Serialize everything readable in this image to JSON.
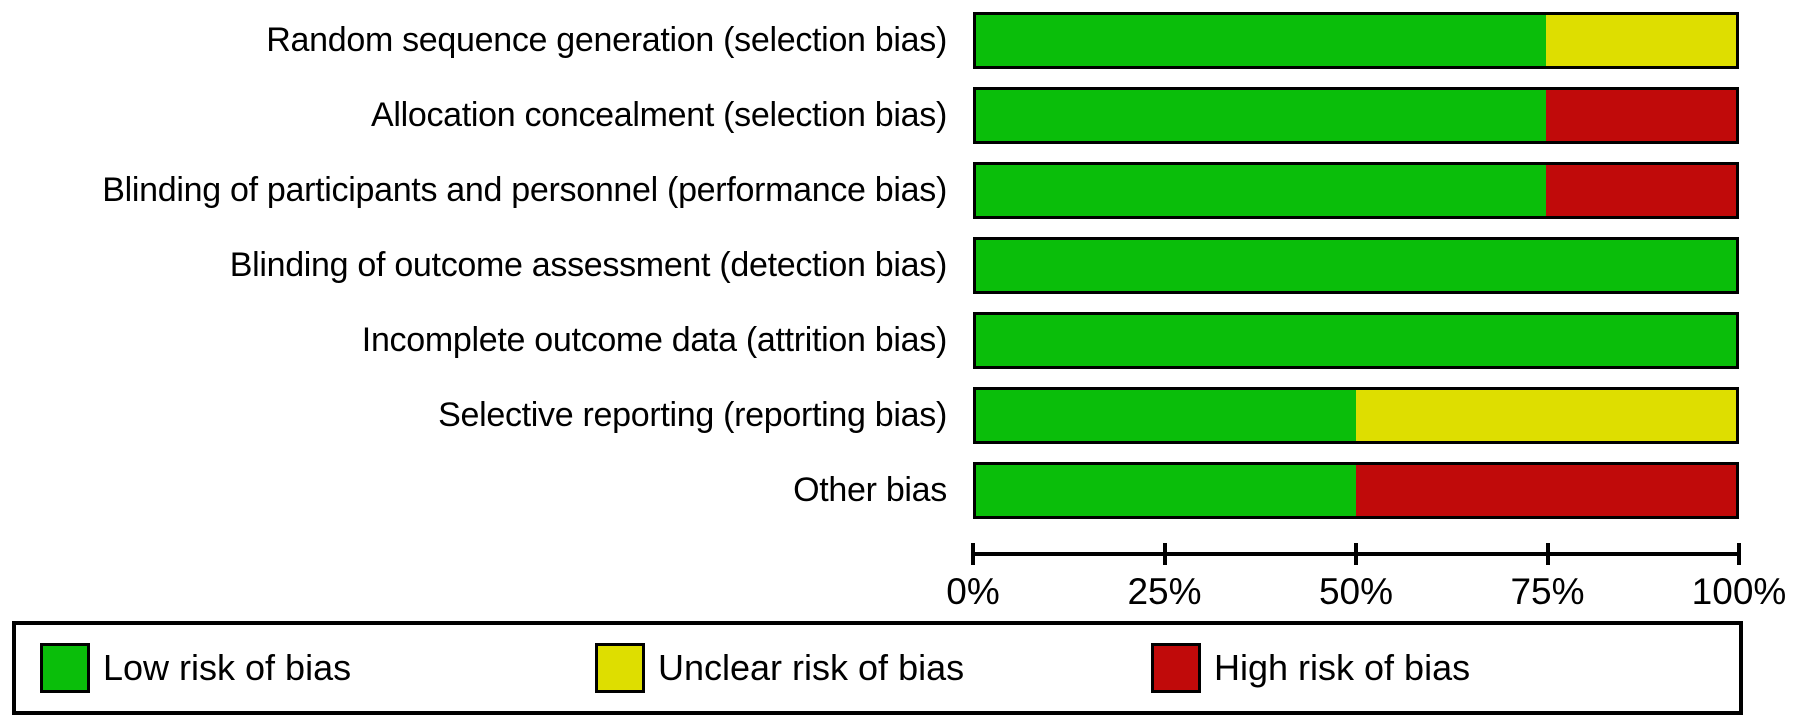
{
  "chart_data": {
    "type": "bar",
    "stacked": true,
    "orientation": "horizontal",
    "title": "",
    "xlabel": "",
    "ylabel": "",
    "xlim": [
      0,
      100
    ],
    "x_tick_labels": [
      "0%",
      "25%",
      "50%",
      "75%",
      "100%"
    ],
    "x_tick_values": [
      0,
      25,
      50,
      75,
      100
    ],
    "grid": false,
    "legend_position": "bottom",
    "categories": [
      "Random sequence generation (selection bias)",
      "Allocation concealment (selection bias)",
      "Blinding of participants and personnel (performance bias)",
      "Blinding of outcome assessment (detection bias)",
      "Incomplete outcome data (attrition bias)",
      "Selective reporting (reporting bias)",
      "Other bias"
    ],
    "series": [
      {
        "name": "Low risk of bias",
        "color": "#0ABE0A",
        "values": [
          75,
          75,
          75,
          100,
          100,
          50,
          50
        ]
      },
      {
        "name": "Unclear risk of bias",
        "color": "#DEDE00",
        "values": [
          25,
          0,
          0,
          0,
          0,
          50,
          0
        ]
      },
      {
        "name": "High risk of bias",
        "color": "#C00A0A",
        "values": [
          0,
          25,
          25,
          0,
          0,
          0,
          50
        ]
      }
    ]
  },
  "legend": {
    "items": [
      {
        "label": "Low risk of bias",
        "color": "#0ABE0A"
      },
      {
        "label": "Unclear risk of bias",
        "color": "#DEDE00"
      },
      {
        "label": "High risk of bias",
        "color": "#C00A0A"
      }
    ]
  },
  "colors": {
    "low_risk": "#0ABE0A",
    "unclear_risk": "#DEDE00",
    "high_risk": "#C00A0A",
    "border": "#000000",
    "background": "#ffffff"
  }
}
